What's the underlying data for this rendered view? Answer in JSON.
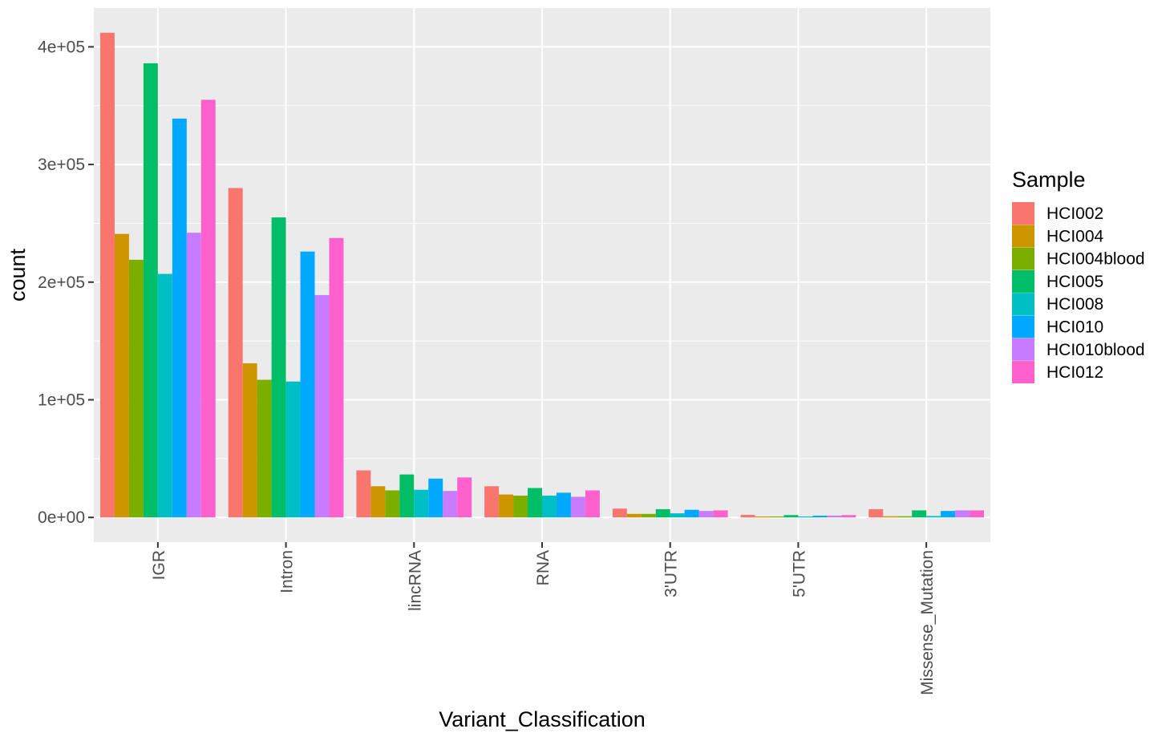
{
  "chart_data": {
    "type": "bar",
    "xlabel": "Variant_Classification",
    "ylabel": "count",
    "ylim": [
      -21000,
      433000
    ],
    "y_ticks": [
      {
        "value": 0,
        "label": "0e+00"
      },
      {
        "value": 100000,
        "label": "1e+05"
      },
      {
        "value": 200000,
        "label": "2e+05"
      },
      {
        "value": 300000,
        "label": "3e+05"
      },
      {
        "value": 400000,
        "label": "4e+05"
      }
    ],
    "categories": [
      "IGR",
      "Intron",
      "lincRNA",
      "RNA",
      "3'UTR",
      "5'UTR",
      "Missense_Mutation"
    ],
    "legend_title": "Sample",
    "legend_position": "right",
    "grid": true,
    "series": [
      {
        "name": "HCI002",
        "color": "#F8766D",
        "values": [
          412000,
          280000,
          40000,
          26500,
          7500,
          2200,
          7000
        ]
      },
      {
        "name": "HCI004",
        "color": "#CD9600",
        "values": [
          241000,
          131000,
          26500,
          19500,
          3000,
          800,
          1000
        ]
      },
      {
        "name": "HCI004blood",
        "color": "#7CAE00",
        "values": [
          219000,
          117000,
          23000,
          18500,
          3000,
          800,
          1000
        ]
      },
      {
        "name": "HCI005",
        "color": "#00BE67",
        "values": [
          386000,
          255000,
          36500,
          25000,
          7000,
          2000,
          6000
        ]
      },
      {
        "name": "HCI008",
        "color": "#00BFC4",
        "values": [
          207000,
          115500,
          23500,
          18500,
          3500,
          800,
          1200
        ]
      },
      {
        "name": "HCI010",
        "color": "#00A9FF",
        "values": [
          339000,
          226000,
          33000,
          21000,
          6500,
          1500,
          5500
        ]
      },
      {
        "name": "HCI010blood",
        "color": "#C77CFF",
        "values": [
          242000,
          189000,
          22500,
          17500,
          5500,
          1500,
          6000
        ]
      },
      {
        "name": "HCI012",
        "color": "#FF61CC",
        "values": [
          355000,
          237500,
          34000,
          23000,
          6000,
          2000,
          6000
        ]
      }
    ]
  }
}
